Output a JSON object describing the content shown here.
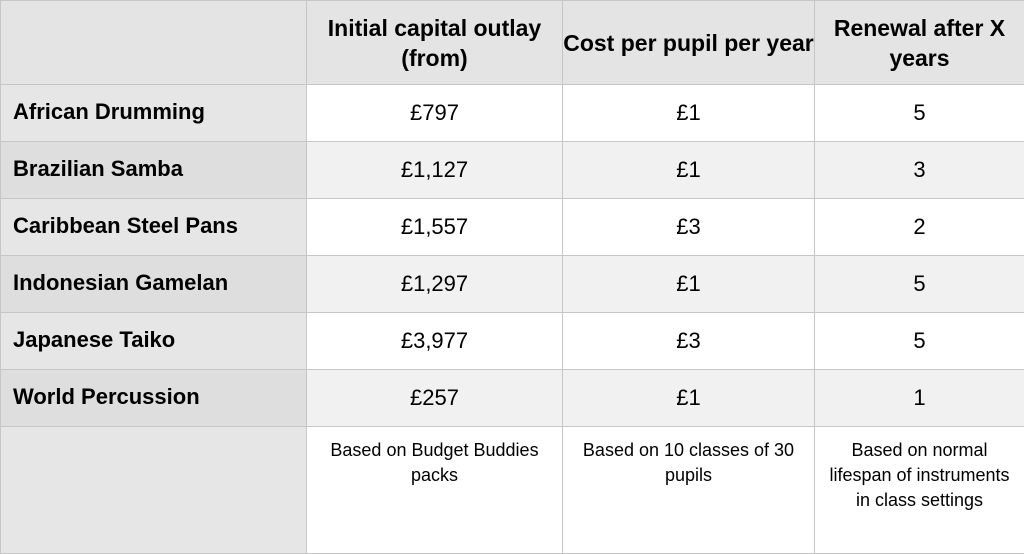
{
  "table": {
    "headers": [
      "",
      "Initial capital outlay (from)",
      "Cost per pupil per year",
      "Renewal after X years"
    ],
    "rows": [
      {
        "label": "African Drumming",
        "capital": "£797",
        "cost": "£1",
        "renewal": "5"
      },
      {
        "label": "Brazilian Samba",
        "capital": "£1,127",
        "cost": "£1",
        "renewal": "3"
      },
      {
        "label": "Caribbean Steel Pans",
        "capital": "£1,557",
        "cost": "£3",
        "renewal": "2"
      },
      {
        "label": "Indonesian Gamelan",
        "capital": "£1,297",
        "cost": "£1",
        "renewal": "5"
      },
      {
        "label": "Japanese Taiko",
        "capital": "£3,977",
        "cost": "£3",
        "renewal": "5"
      },
      {
        "label": "World Percussion",
        "capital": "£257",
        "cost": "£1",
        "renewal": "1"
      }
    ],
    "notes": {
      "capital": "Based on Budget Buddies packs",
      "cost": "Based on 10 classes of 30 pupils",
      "renewal": "Based on normal lifespan of instruments in class settings"
    }
  }
}
